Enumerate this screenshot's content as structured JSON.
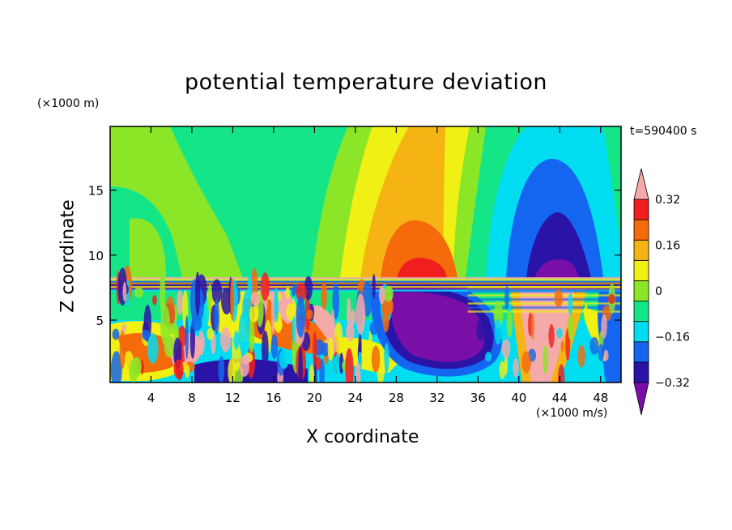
{
  "chart_data": {
    "type": "heatmap",
    "title": "potential temperature deviation",
    "xlabel": "X coordinate",
    "ylabel": "Z coordinate",
    "x_unit": "(×1000 m/s)",
    "y_unit": "(×1000 m)",
    "time_label": "t=590400 s",
    "xlim": [
      0,
      50
    ],
    "ylim": [
      0.2,
      19.9
    ],
    "x_ticks": [
      4,
      8,
      12,
      16,
      20,
      24,
      28,
      32,
      36,
      40,
      44,
      48
    ],
    "y_ticks": [
      5,
      10,
      15
    ],
    "colorbar": {
      "levels": [
        -0.4,
        -0.32,
        -0.24,
        -0.16,
        -0.08,
        0,
        0.08,
        0.16,
        0.24,
        0.32,
        0.4
      ],
      "tick_labels": [
        "0.32",
        "0.16",
        "0",
        "−0.16",
        "−0.32"
      ],
      "tick_values": [
        0.32,
        0.16,
        0,
        -0.16,
        -0.32
      ],
      "colors": [
        "#7a0fa8",
        "#2a14a8",
        "#1466f0",
        "#00dcf0",
        "#14e688",
        "#8ce628",
        "#f0f014",
        "#f5b414",
        "#f56a0a",
        "#f01e1e",
        "#f5aaaa"
      ],
      "extend": "both"
    }
  }
}
